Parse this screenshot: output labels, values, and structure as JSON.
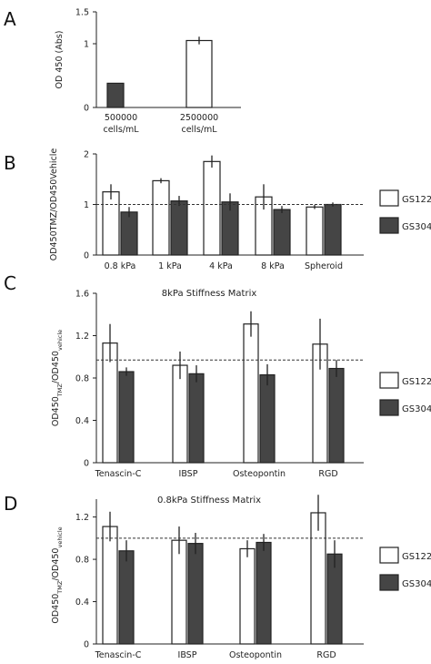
{
  "chart_data": [
    {
      "panel": "A",
      "type": "bar",
      "ylabel": "OD 450 (Abs)",
      "ylim": [
        0,
        1.5
      ],
      "yticks": [
        "0",
        "1",
        "1.5"
      ],
      "category_lines": [
        [
          "500000",
          "cells/mL"
        ],
        [
          "2500000",
          "cells/mL"
        ]
      ],
      "series": [
        {
          "values": [
            0.38,
            1.05
          ],
          "errors": [
            0.0,
            0.06
          ]
        }
      ]
    },
    {
      "panel": "B",
      "type": "bar",
      "ylabel": "OD450TMZ/OD450Vehicle",
      "ylim": [
        0,
        2.0
      ],
      "yticks": [
        "0",
        "1",
        "2"
      ],
      "reference_line": 1.0,
      "legend_position": "right",
      "categories": [
        "0.8 kPa",
        "1 kPa",
        "4 kPa",
        "8 kPa",
        "Spheroid"
      ],
      "series": [
        {
          "name": "GS122",
          "values": [
            1.25,
            1.47,
            1.85,
            1.15,
            0.95
          ],
          "errors": [
            0.15,
            0.05,
            0.12,
            0.25,
            0.04
          ]
        },
        {
          "name": "GS304",
          "values": [
            0.85,
            1.07,
            1.05,
            0.9,
            1.0
          ],
          "errors": [
            0.1,
            0.1,
            0.17,
            0.07,
            0.04
          ]
        }
      ]
    },
    {
      "panel": "C",
      "type": "bar",
      "title": "8kPa Stiffness Matrix",
      "ylabel": "OD450TMZ/OD450vehicle",
      "ylim": [
        0,
        1.6
      ],
      "yticks": [
        "0",
        "0.4",
        "0.8",
        "1.2",
        "1.6"
      ],
      "reference_line": 0.97,
      "legend_position": "right",
      "categories": [
        "Tenascin-C",
        "IBSP",
        "Osteopontin",
        "RGD"
      ],
      "series": [
        {
          "name": "GS122",
          "values": [
            1.13,
            0.92,
            1.31,
            1.12
          ],
          "errors": [
            0.18,
            0.13,
            0.12,
            0.24
          ]
        },
        {
          "name": "GS304",
          "values": [
            0.86,
            0.84,
            0.83,
            0.89
          ],
          "errors": [
            0.04,
            0.08,
            0.1,
            0.08
          ]
        }
      ]
    },
    {
      "panel": "D",
      "type": "bar",
      "title": "0.8kPa Stiffness Matrix",
      "ylabel": "OD450TMZ/OD450vehicle",
      "ylim": [
        0,
        1.3
      ],
      "yticks": [
        "0",
        "0.4",
        "0.8",
        "1.2"
      ],
      "reference_line": 1.0,
      "legend_position": "right",
      "categories": [
        "Tenascin-C",
        "IBSP",
        "Osteopontin",
        "RGD"
      ],
      "series": [
        {
          "name": "GS122",
          "values": [
            1.11,
            0.98,
            0.9,
            1.24
          ],
          "errors": [
            0.14,
            0.13,
            0.08,
            0.17
          ]
        },
        {
          "name": "GS304",
          "values": [
            0.88,
            0.95,
            0.96,
            0.85
          ],
          "errors": [
            0.1,
            0.1,
            0.08,
            0.13
          ]
        }
      ]
    }
  ],
  "colors": {
    "GS122": "#ffffff",
    "GS304": "#454545",
    "stroke": "#222222"
  }
}
